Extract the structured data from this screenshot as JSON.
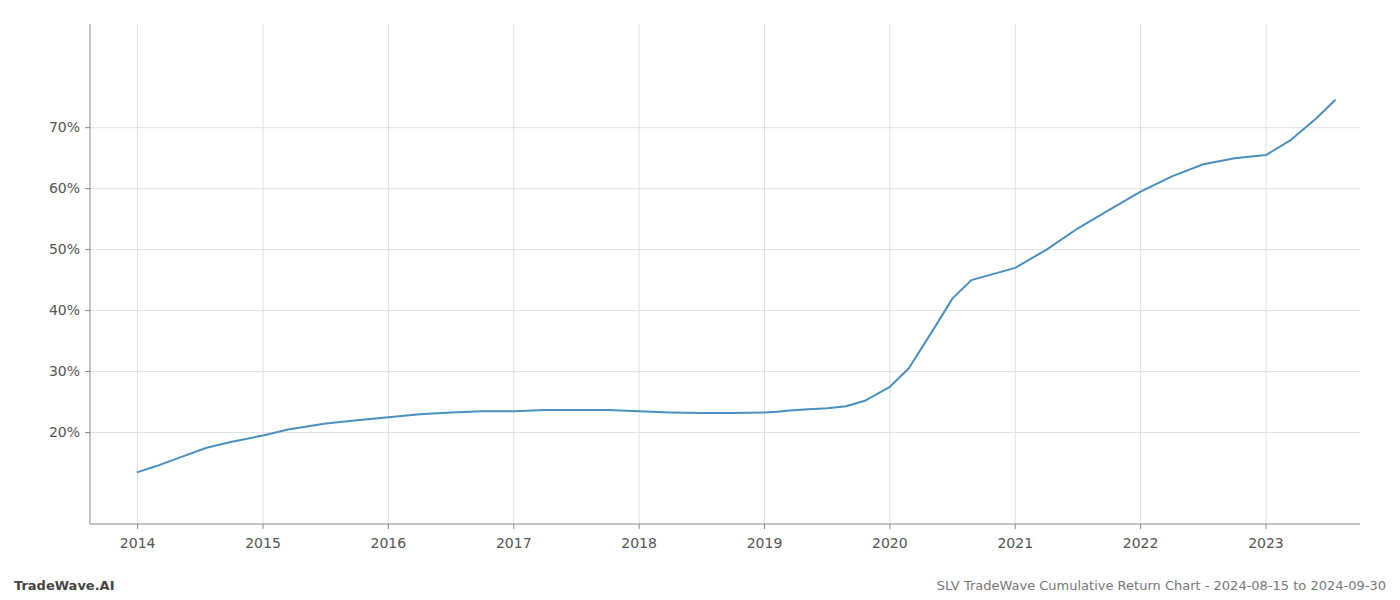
{
  "chart_data": {
    "type": "line",
    "annotations": [
      "TradeWave.AI",
      "SLV TradeWave Cumulative Return Chart - 2024-08-15 to 2024-09-30"
    ],
    "x": [
      2014.0,
      2014.15,
      2014.35,
      2014.55,
      2014.75,
      2015.0,
      2015.2,
      2015.5,
      2015.75,
      2016.0,
      2016.25,
      2016.5,
      2016.75,
      2017.0,
      2017.25,
      2017.5,
      2017.75,
      2018.0,
      2018.25,
      2018.5,
      2018.75,
      2019.0,
      2019.1,
      2019.2,
      2019.35,
      2019.5,
      2019.65,
      2019.8,
      2020.0,
      2020.15,
      2020.35,
      2020.5,
      2020.65,
      2021.0,
      2021.25,
      2021.5,
      2021.75,
      2022.0,
      2022.25,
      2022.5,
      2022.75,
      2023.0,
      2023.2,
      2023.4,
      2023.55
    ],
    "values": [
      13.5,
      14.5,
      16.0,
      17.5,
      18.5,
      19.5,
      20.5,
      21.5,
      22.0,
      22.5,
      23.0,
      23.3,
      23.5,
      23.5,
      23.7,
      23.7,
      23.7,
      23.5,
      23.3,
      23.2,
      23.2,
      23.3,
      23.4,
      23.6,
      23.8,
      24.0,
      24.3,
      25.2,
      27.5,
      30.5,
      37.0,
      42.0,
      45.0,
      47.0,
      50.0,
      53.5,
      56.5,
      59.5,
      62.0,
      64.0,
      65.0,
      65.5,
      68.0,
      71.5,
      74.5
    ],
    "color": "#4a8fc0",
    "xlim": [
      2013.62,
      2023.75
    ],
    "xticks": [
      2014,
      2015,
      2016,
      2017,
      2018,
      2019,
      2020,
      2021,
      2022,
      2023
    ],
    "ylim": [
      5,
      87
    ],
    "yticks": [
      {
        "value": 20,
        "label": "20%"
      },
      {
        "value": 30,
        "label": "30%"
      },
      {
        "value": 40,
        "label": "40%"
      },
      {
        "value": 50,
        "label": "50%"
      },
      {
        "value": 60,
        "label": "60%"
      },
      {
        "value": 70,
        "label": "70%"
      }
    ],
    "grid": true
  }
}
